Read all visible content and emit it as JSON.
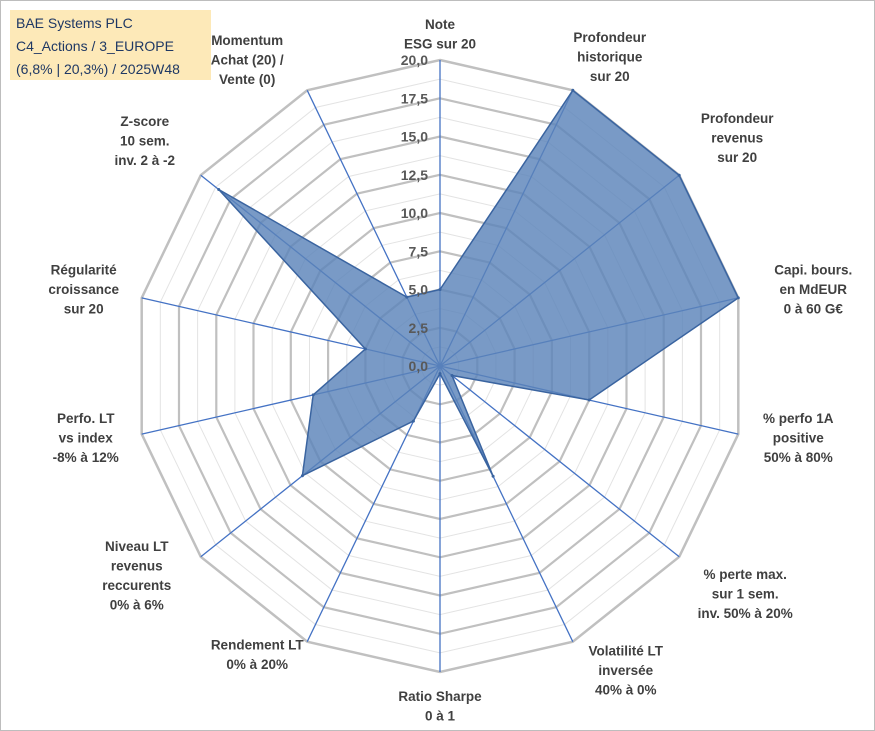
{
  "title_box": {
    "line1": "BAE Systems PLC",
    "line2": "C4_Actions / 3_EUROPE",
    "line3": "(6,8% | 20,3%) / 2025W48"
  },
  "chart_data": {
    "type": "radar",
    "title": "BAE Systems PLC",
    "rmax": 20,
    "ticks": [
      "0,0",
      "2,5",
      "5,0",
      "7,5",
      "10,0",
      "12,5",
      "15,0",
      "17,5",
      "20,0"
    ],
    "tick_values": [
      0,
      2.5,
      5,
      7.5,
      10,
      12.5,
      15,
      17.5,
      20
    ],
    "categories": [
      [
        "Note",
        "ESG sur 20"
      ],
      [
        "Profondeur",
        "historique",
        "sur 20"
      ],
      [
        "Profondeur",
        "revenus",
        "sur 20"
      ],
      [
        "Capi. bours.",
        "en MdEUR",
        "0 à 60 G€"
      ],
      [
        "% perfo 1A",
        "positive",
        "50% à 80%"
      ],
      [
        "% perte max.",
        "sur 1 sem.",
        "inv. 50% à 20%"
      ],
      [
        "Volatilité LT",
        "inversée",
        "40% à 0%"
      ],
      [
        "Ratio Sharpe",
        "0 à 1"
      ],
      [
        "Rendement LT",
        "0% à 20%"
      ],
      [
        "Niveau LT",
        "revenus",
        "reccurents",
        "0% à 6%"
      ],
      [
        "Perfo. LT",
        "vs index",
        "-8% à 12%"
      ],
      [
        "Régularité",
        "croissance",
        "sur 20"
      ],
      [
        "Z-score",
        "10 sem.",
        "inv. 2 à -2"
      ],
      [
        "Momentum",
        "Achat (20) /",
        "Vente (0)"
      ]
    ],
    "series": [
      {
        "name": "BAE Systems PLC",
        "values": [
          5,
          20,
          20,
          20,
          10,
          1,
          8,
          0.5,
          4,
          11.5,
          8.5,
          5,
          18.5,
          5
        ]
      }
    ],
    "colors": {
      "fill": "#5b84b9",
      "stroke": "#3a64a0",
      "axis": "#4472c4",
      "grid": "#c0c0c0",
      "title_bg": "#fde9b8",
      "title_text": "#1f3864"
    }
  }
}
